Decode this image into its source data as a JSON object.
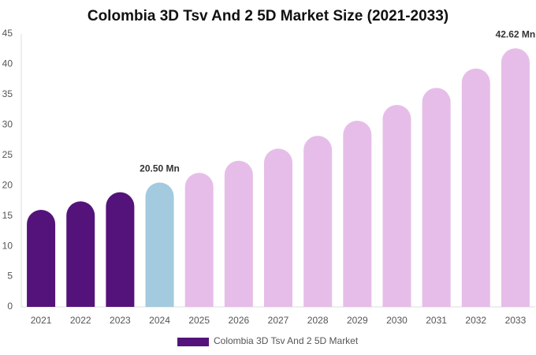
{
  "chart_data": {
    "type": "bar",
    "title": "Colombia 3D Tsv And 2 5D Market Size (2021-2033)",
    "categories": [
      "2021",
      "2022",
      "2023",
      "2024",
      "2025",
      "2026",
      "2027",
      "2028",
      "2029",
      "2030",
      "2031",
      "2032",
      "2033"
    ],
    "series": [
      {
        "name": "Colombia 3D Tsv And 2 5D Market",
        "color": "#54137a",
        "colors": [
          "#54137a",
          "#54137a",
          "#54137a",
          "#a3cadf",
          "#e6bde8",
          "#e6bde8",
          "#e6bde8",
          "#e6bde8",
          "#e6bde8",
          "#e6bde8",
          "#e6bde8",
          "#e6bde8",
          "#e6bde8"
        ],
        "values": [
          16.0,
          17.4,
          18.9,
          20.5,
          22.1,
          24.1,
          26.1,
          28.2,
          30.7,
          33.3,
          36.1,
          39.3,
          42.62
        ],
        "value_labels": [
          null,
          null,
          null,
          "20.50 Mn",
          null,
          null,
          null,
          null,
          null,
          null,
          null,
          null,
          "42.62 Mn"
        ]
      }
    ],
    "ylim": [
      0,
      45
    ],
    "yticks": [
      0,
      5,
      10,
      15,
      20,
      25,
      30,
      35,
      40,
      45
    ],
    "grid": false
  }
}
